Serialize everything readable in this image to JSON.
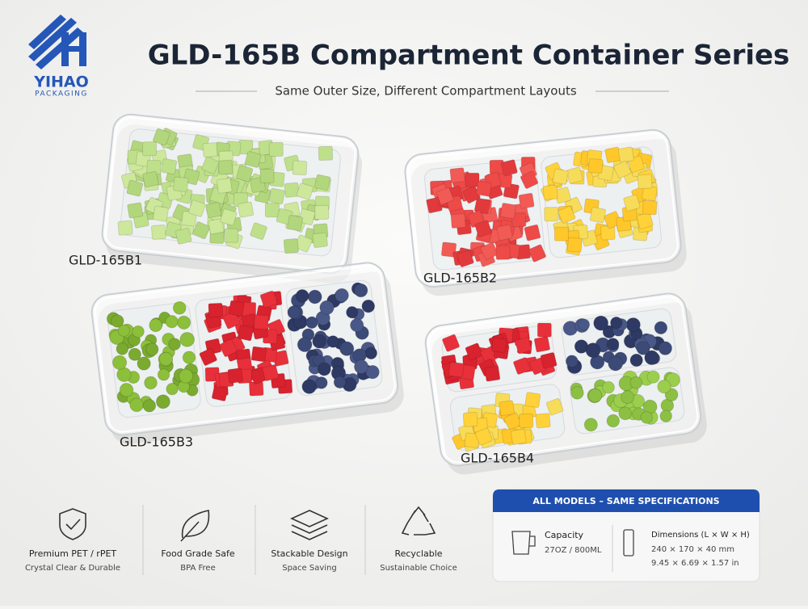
{
  "logo": {
    "name": "YIHAO",
    "tagline": "PACKAGING"
  },
  "header": {
    "title": "GLD-165B Compartment Container Series",
    "subtitle": "Same Outer Size, Different Compartment Layouts"
  },
  "products": [
    {
      "label": "GLD-165B1"
    },
    {
      "label": "GLD-165B2"
    },
    {
      "label": "GLD-165B3"
    },
    {
      "label": "GLD-165B4"
    }
  ],
  "features": [
    {
      "title": "Premium PET / rPET",
      "subtitle": "Crystal Clear & Durable"
    },
    {
      "title": "Food Grade Safe",
      "subtitle": "BPA Free"
    },
    {
      "title": "Stackable Design",
      "subtitle": "Space Saving"
    },
    {
      "title": "Recyclable",
      "subtitle": "Sustainable Choice"
    }
  ],
  "specs": {
    "header": "ALL MODELS – SAME SPECIFICATIONS",
    "items": [
      {
        "label": "Capacity",
        "lines": [
          "27OZ / 800ML"
        ]
      },
      {
        "label": "Dimensions (L × W × H)",
        "lines": [
          "240 × 170 × 40 mm",
          "9.45 × 6.69 × 1.57 in"
        ]
      }
    ]
  }
}
